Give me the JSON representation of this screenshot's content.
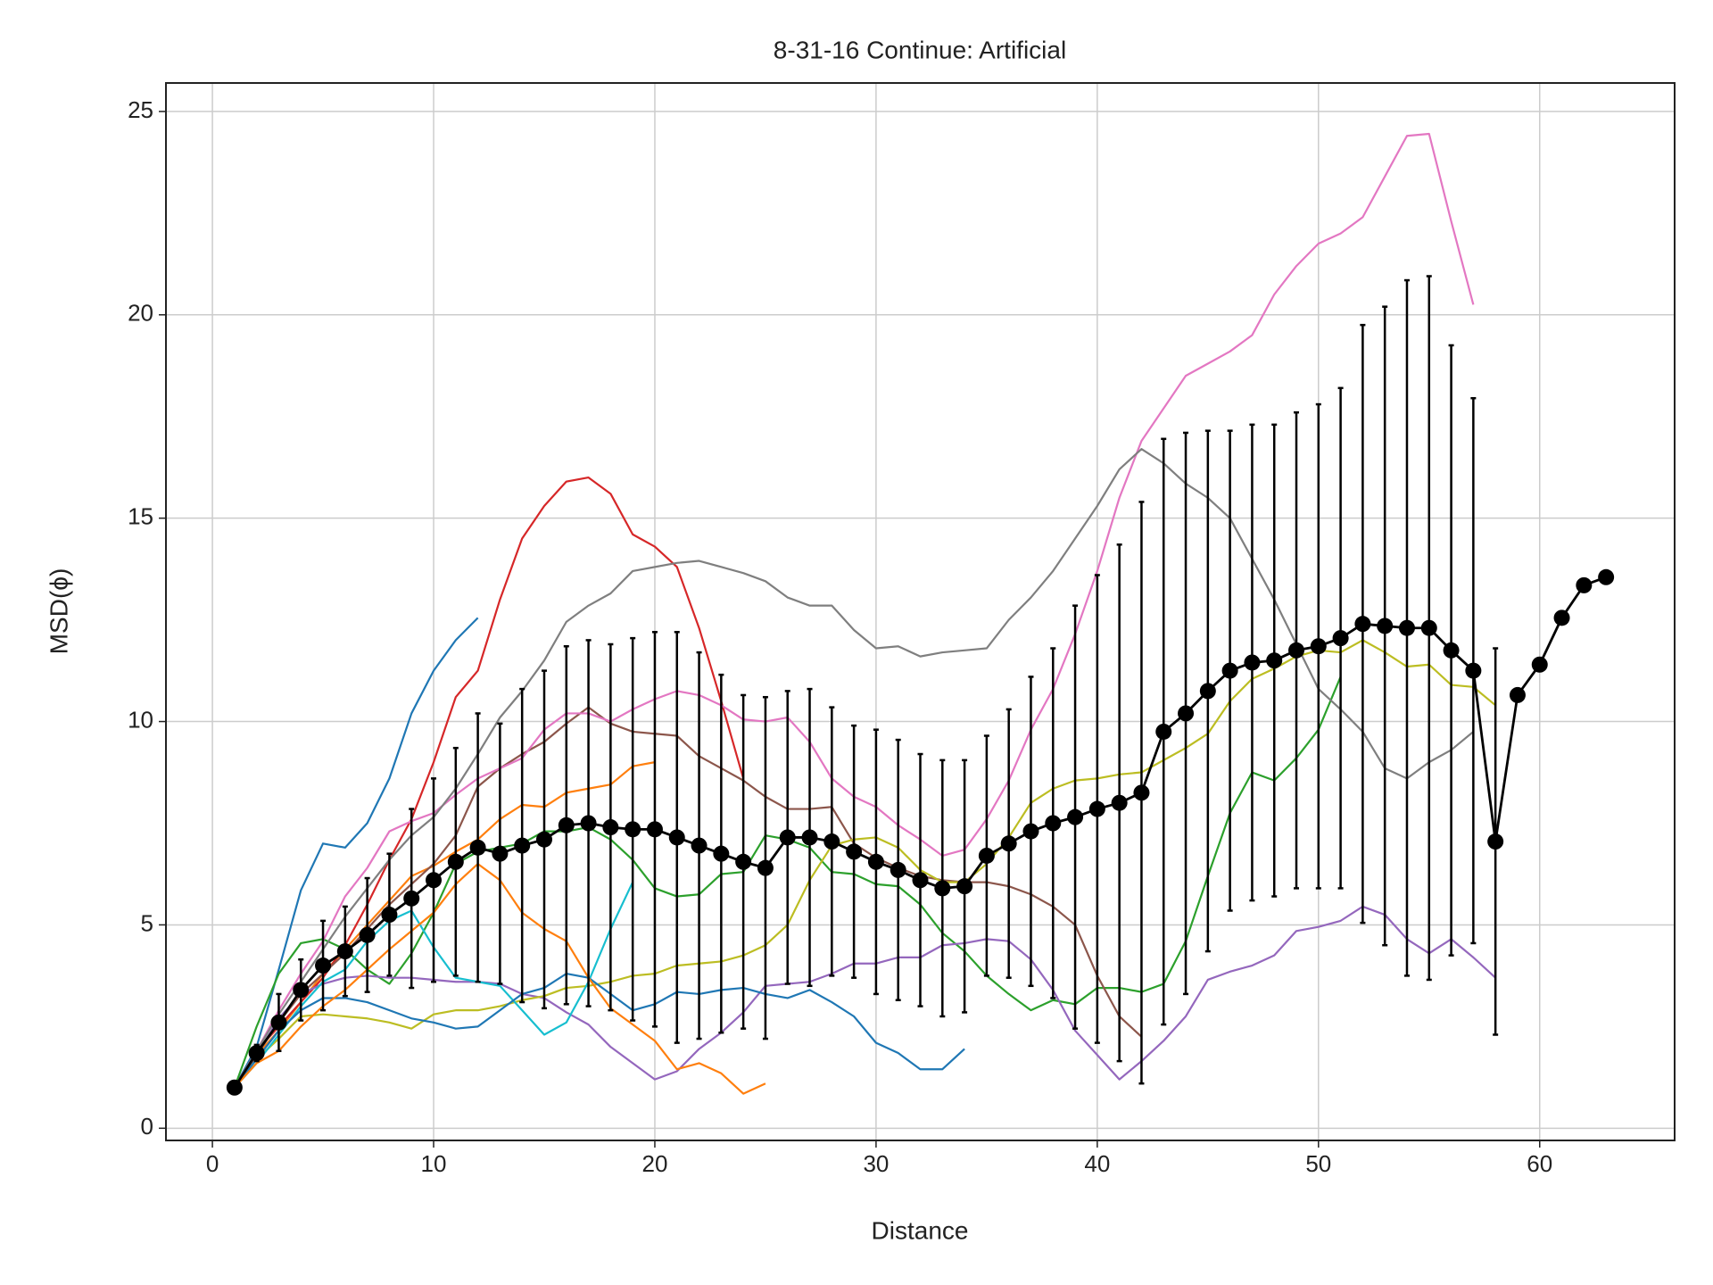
{
  "chart_data": {
    "type": "line",
    "title": "8-31-16 Continue: Artificial",
    "x_label": "Distance",
    "y_label": "MSD(ϕ)",
    "xlim": [
      -2.1,
      66.1
    ],
    "ylim": [
      -0.3,
      25.7
    ],
    "xticks": [
      0,
      10,
      20,
      30,
      40,
      50,
      60
    ],
    "yticks": [
      0,
      5,
      10,
      15,
      20,
      25
    ],
    "grid": true,
    "x": [
      1,
      2,
      3,
      4,
      5,
      6,
      7,
      8,
      9,
      10,
      11,
      12,
      13,
      14,
      15,
      16,
      17,
      18,
      19,
      20,
      21,
      22,
      23,
      24,
      25,
      26,
      27,
      28,
      29,
      30,
      31,
      32,
      33,
      34,
      35,
      36,
      37,
      38,
      39,
      40,
      41,
      42,
      43,
      44,
      45,
      46,
      47,
      48,
      49,
      50,
      51,
      52,
      53,
      54,
      55,
      56,
      57,
      58,
      59,
      60,
      61,
      62,
      63
    ],
    "series": [
      {
        "color": "#1f77b4",
        "values": [
          1.0,
          2.0,
          3.9,
          5.85,
          7.0,
          6.9,
          7.5,
          8.6,
          10.2,
          11.25,
          12.0,
          12.55,
          null,
          null,
          null,
          null,
          null,
          null,
          null,
          null,
          null,
          null,
          null,
          null,
          null,
          null,
          null,
          null,
          null,
          null,
          null,
          null,
          null,
          null,
          null,
          null,
          null,
          null,
          null,
          null,
          null,
          null,
          null,
          null,
          null,
          null,
          null,
          null,
          null,
          null,
          null,
          null,
          null,
          null,
          null,
          null,
          null,
          null,
          null,
          null,
          null,
          null,
          null
        ]
      },
      {
        "color": "#ff7f0e",
        "values": [
          1.0,
          1.8,
          2.4,
          3.1,
          3.8,
          4.4,
          5.0,
          5.6,
          6.2,
          6.45,
          6.8,
          7.1,
          7.6,
          7.95,
          7.9,
          8.25,
          8.35,
          8.45,
          8.9,
          9.0,
          null,
          null,
          null,
          null,
          null,
          null,
          null,
          null,
          null,
          null,
          null,
          null,
          null,
          null,
          null,
          null,
          null,
          null,
          null,
          null,
          null,
          null,
          null,
          null,
          null,
          null,
          null,
          null,
          null,
          null,
          null,
          null,
          null,
          null,
          null,
          null,
          null,
          null,
          null,
          null,
          null,
          null,
          null
        ]
      },
      {
        "color": "#2ca02c",
        "values": [
          1.0,
          2.5,
          3.8,
          4.55,
          4.65,
          4.4,
          3.9,
          3.55,
          4.3,
          5.3,
          6.5,
          6.8,
          6.9,
          7.0,
          7.3,
          7.3,
          7.4,
          7.1,
          6.6,
          5.9,
          5.7,
          5.75,
          6.25,
          6.3,
          7.2,
          7.1,
          6.9,
          6.3,
          6.25,
          6.0,
          5.95,
          5.5,
          4.8,
          4.35,
          3.75,
          3.3,
          2.9,
          3.15,
          3.05,
          3.45,
          3.45,
          3.35,
          3.55,
          4.6,
          6.2,
          7.75,
          8.75,
          8.55,
          9.1,
          9.8,
          11.1,
          null,
          null,
          null,
          null,
          null,
          null,
          null,
          null,
          null,
          null,
          null,
          null
        ]
      },
      {
        "color": "#d62728",
        "values": [
          1.0,
          1.9,
          2.5,
          3.1,
          3.7,
          4.5,
          5.5,
          6.6,
          7.6,
          9.0,
          10.6,
          11.25,
          13.0,
          14.5,
          15.3,
          15.9,
          16.0,
          15.6,
          14.6,
          14.3,
          13.8,
          12.3,
          10.5,
          8.6,
          null,
          null,
          null,
          null,
          null,
          null,
          null,
          null,
          null,
          null,
          null,
          null,
          null,
          null,
          null,
          null,
          null,
          null,
          null,
          null,
          null,
          null,
          null,
          null,
          null,
          null,
          null,
          null,
          null,
          null,
          null,
          null,
          null,
          null,
          null,
          null,
          null,
          null,
          null
        ]
      },
      {
        "color": "#9467bd",
        "values": [
          1.0,
          1.8,
          2.7,
          3.3,
          3.55,
          3.7,
          3.75,
          3.7,
          3.7,
          3.65,
          3.6,
          3.6,
          3.55,
          3.3,
          3.2,
          2.85,
          2.55,
          2.0,
          1.6,
          1.2,
          1.4,
          1.95,
          2.35,
          2.85,
          3.5,
          3.55,
          3.6,
          3.8,
          4.05,
          4.05,
          4.2,
          4.2,
          4.5,
          4.55,
          4.65,
          4.6,
          4.15,
          3.4,
          2.4,
          1.8,
          1.2,
          1.65,
          2.15,
          2.75,
          3.65,
          3.85,
          4.0,
          4.25,
          4.85,
          4.95,
          5.1,
          5.45,
          5.25,
          4.65,
          4.3,
          4.65,
          4.2,
          3.7,
          null,
          null,
          null,
          null,
          null
        ]
      },
      {
        "color": "#8c564b",
        "values": [
          1.0,
          1.8,
          2.6,
          3.3,
          3.8,
          4.3,
          4.9,
          5.5,
          6.0,
          6.5,
          7.2,
          8.4,
          8.85,
          9.2,
          9.5,
          9.95,
          10.35,
          9.95,
          9.75,
          9.7,
          9.65,
          9.15,
          8.85,
          8.55,
          8.15,
          7.85,
          7.85,
          7.9,
          7.0,
          6.65,
          6.4,
          6.2,
          6.1,
          6.05,
          6.05,
          5.95,
          5.75,
          5.45,
          5.0,
          3.75,
          2.75,
          2.25,
          null,
          null,
          null,
          null,
          null,
          null,
          null,
          null,
          null,
          null,
          null,
          null,
          null,
          null,
          null,
          null,
          null,
          null,
          null,
          null,
          null
        ]
      },
      {
        "color": "#e377c2",
        "values": [
          1.0,
          1.9,
          2.9,
          3.8,
          4.6,
          5.7,
          6.4,
          7.3,
          7.55,
          7.75,
          8.2,
          8.6,
          8.85,
          9.1,
          9.8,
          10.2,
          10.2,
          10.0,
          10.3,
          10.55,
          10.75,
          10.65,
          10.4,
          10.05,
          10.0,
          10.1,
          9.5,
          8.6,
          8.15,
          7.9,
          7.45,
          7.1,
          6.7,
          6.85,
          7.6,
          8.55,
          9.8,
          10.8,
          12.15,
          13.7,
          15.5,
          16.9,
          17.7,
          18.5,
          18.8,
          19.1,
          19.5,
          20.5,
          21.2,
          21.75,
          22.0,
          22.4,
          23.4,
          24.4,
          24.45,
          22.3,
          20.25,
          null,
          null,
          null,
          null,
          null,
          null
        ]
      },
      {
        "color": "#7f7f7f",
        "values": [
          1.0,
          1.9,
          2.8,
          3.6,
          4.4,
          5.2,
          5.9,
          6.6,
          7.2,
          7.65,
          8.35,
          9.2,
          10.1,
          10.75,
          11.5,
          12.45,
          12.85,
          13.15,
          13.7,
          13.8,
          13.9,
          13.95,
          13.8,
          13.65,
          13.45,
          13.05,
          12.85,
          12.85,
          12.25,
          11.8,
          11.85,
          11.6,
          11.7,
          11.75,
          11.8,
          12.5,
          13.05,
          13.7,
          14.5,
          15.3,
          16.2,
          16.7,
          16.35,
          15.85,
          15.5,
          15.0,
          14.0,
          13.0,
          11.9,
          10.8,
          10.3,
          9.75,
          8.85,
          8.6,
          9.0,
          9.3,
          9.75,
          null,
          null,
          null,
          null,
          null,
          null
        ]
      },
      {
        "color": "#bcbd22",
        "values": [
          1.0,
          1.7,
          2.2,
          2.75,
          2.8,
          2.75,
          2.7,
          2.6,
          2.45,
          2.8,
          2.9,
          2.9,
          3.0,
          3.15,
          3.25,
          3.45,
          3.5,
          3.6,
          3.75,
          3.8,
          4.0,
          4.05,
          4.1,
          4.25,
          4.5,
          5.0,
          6.1,
          6.95,
          7.1,
          7.15,
          6.9,
          6.35,
          6.05,
          6.05,
          6.5,
          7.15,
          8.0,
          8.35,
          8.55,
          8.6,
          8.7,
          8.75,
          9.05,
          9.35,
          9.7,
          10.5,
          11.05,
          11.3,
          11.6,
          11.75,
          11.7,
          12.0,
          11.7,
          11.35,
          11.4,
          10.9,
          10.85,
          10.4,
          null,
          null,
          null,
          null,
          null
        ]
      },
      {
        "color": "#17becf",
        "values": [
          1.0,
          1.6,
          2.3,
          3.0,
          3.6,
          3.9,
          4.6,
          5.1,
          5.35,
          4.45,
          3.7,
          3.6,
          3.5,
          2.9,
          2.3,
          2.6,
          3.6,
          4.9,
          6.05,
          null,
          null,
          null,
          null,
          null,
          null,
          null,
          null,
          null,
          null,
          null,
          null,
          null,
          null,
          null,
          null,
          null,
          null,
          null,
          null,
          null,
          null,
          null,
          null,
          null,
          null,
          null,
          null,
          null,
          null,
          null,
          null,
          null,
          null,
          null,
          null,
          null,
          null,
          null,
          null,
          null,
          null,
          null,
          null
        ]
      },
      {
        "color": "#1f77b4",
        "values": [
          1.0,
          1.7,
          2.4,
          2.9,
          3.2,
          3.2,
          3.1,
          2.9,
          2.7,
          2.6,
          2.45,
          2.5,
          2.9,
          3.3,
          3.45,
          3.8,
          3.7,
          3.3,
          2.9,
          3.05,
          3.35,
          3.3,
          3.4,
          3.45,
          3.3,
          3.2,
          3.4,
          3.1,
          2.75,
          2.1,
          1.85,
          1.45,
          1.45,
          1.95,
          null,
          null,
          null,
          null,
          null,
          null,
          null,
          null,
          null,
          null,
          null,
          null,
          null,
          null,
          null,
          null,
          null,
          null,
          null,
          null,
          null,
          null,
          null,
          null,
          null,
          null,
          null,
          null,
          null
        ]
      },
      {
        "color": "#ff7f0e",
        "values": [
          1.0,
          1.6,
          1.9,
          2.5,
          3.0,
          3.4,
          3.9,
          4.4,
          4.85,
          5.3,
          6.0,
          6.5,
          6.1,
          5.3,
          4.9,
          4.6,
          3.7,
          2.95,
          2.55,
          2.15,
          1.45,
          1.6,
          1.35,
          0.85,
          1.1,
          null,
          null,
          null,
          null,
          null,
          null,
          null,
          null,
          null,
          null,
          null,
          null,
          null,
          null,
          null,
          null,
          null,
          null,
          null,
          null,
          null,
          null,
          null,
          null,
          null,
          null,
          null,
          null,
          null,
          null,
          null,
          null,
          null,
          null,
          null,
          null,
          null,
          null
        ]
      },
      {
        "color": "#000000",
        "marker": "o",
        "values": [
          1.0,
          1.85,
          2.6,
          3.4,
          4.0,
          4.35,
          4.75,
          5.25,
          5.65,
          6.1,
          6.55,
          6.9,
          6.75,
          6.95,
          7.1,
          7.45,
          7.5,
          7.4,
          7.35,
          7.35,
          7.15,
          6.95,
          6.75,
          6.55,
          6.4,
          7.15,
          7.15,
          7.05,
          6.8,
          6.55,
          6.35,
          6.1,
          5.9,
          5.95,
          6.7,
          7.0,
          7.3,
          7.5,
          7.65,
          7.85,
          8.0,
          8.25,
          9.75,
          10.2,
          10.75,
          11.25,
          11.45,
          11.5,
          11.75,
          11.85,
          12.05,
          12.4,
          12.35,
          12.3,
          12.3,
          11.75,
          11.25,
          7.05,
          10.65,
          11.4,
          12.55,
          13.35,
          13.55
        ],
        "errors": [
          0,
          0.2,
          0.7,
          0.75,
          1.1,
          1.1,
          1.4,
          1.5,
          2.2,
          2.5,
          2.8,
          3.3,
          3.2,
          3.85,
          4.15,
          4.4,
          4.5,
          4.5,
          4.7,
          4.85,
          5.05,
          4.75,
          4.4,
          4.1,
          4.2,
          3.6,
          3.65,
          3.3,
          3.1,
          3.25,
          3.2,
          3.1,
          3.15,
          3.1,
          2.95,
          3.3,
          3.8,
          4.3,
          5.2,
          5.75,
          6.35,
          7.15,
          7.2,
          6.9,
          6.4,
          5.9,
          5.85,
          5.8,
          5.85,
          5.95,
          6.15,
          7.35,
          7.85,
          8.55,
          8.65,
          7.5,
          6.7,
          4.75,
          null,
          null,
          null,
          null,
          null
        ]
      }
    ]
  }
}
